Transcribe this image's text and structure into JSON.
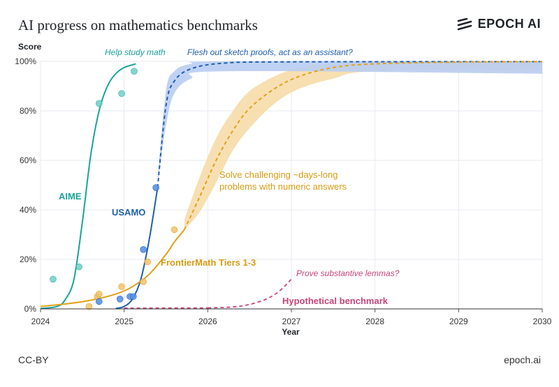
{
  "header": {
    "title": "AI progress on mathematics benchmarks",
    "brand": "EPOCH AI"
  },
  "footer": {
    "license": "CC-BY",
    "site": "epoch.ai"
  },
  "colors": {
    "aime": "#1aa39a",
    "usamo": "#1f5fb0",
    "usamo_light": "#4f8be0",
    "frontier": "#e0a11a",
    "hypothetical": "#c7457a",
    "grid": "#e6eaef",
    "usamo_band": "#b9cdf2",
    "frontier_band": "#f6dca8"
  },
  "chart_data": {
    "type": "line",
    "xlabel": "Year",
    "ylabel": "Score",
    "xlim": [
      2024,
      2030
    ],
    "ylim": [
      0,
      100
    ],
    "x_ticks": [
      "2024",
      "2025",
      "2026",
      "2027",
      "2028",
      "2029",
      "2030"
    ],
    "y_ticks": [
      "0%",
      "20%",
      "40%",
      "60%",
      "80%",
      "100%"
    ],
    "grid": true,
    "series": [
      {
        "name": "AIME",
        "fit": [
          [
            2024.0,
            0.2
          ],
          [
            2024.2,
            1
          ],
          [
            2024.3,
            4
          ],
          [
            2024.4,
            12
          ],
          [
            2024.5,
            35
          ],
          [
            2024.6,
            62
          ],
          [
            2024.7,
            80
          ],
          [
            2024.8,
            90
          ],
          [
            2024.9,
            95
          ],
          [
            2025.0,
            97.5
          ],
          [
            2025.14,
            99
          ]
        ],
        "points": [
          [
            2024.15,
            12
          ],
          [
            2024.46,
            17
          ],
          [
            2024.7,
            83
          ],
          [
            2024.97,
            87
          ],
          [
            2025.12,
            96
          ]
        ]
      },
      {
        "name": "USAMO",
        "fit": [
          [
            2024.9,
            0.2
          ],
          [
            2025.0,
            1
          ],
          [
            2025.1,
            4
          ],
          [
            2025.2,
            12
          ],
          [
            2025.3,
            28
          ],
          [
            2025.4,
            49
          ]
        ],
        "projection": [
          [
            2025.4,
            49
          ],
          [
            2025.5,
            82
          ],
          [
            2025.6,
            92
          ],
          [
            2025.8,
            97
          ],
          [
            2026.2,
            99.3
          ],
          [
            2027,
            99.8
          ],
          [
            2030,
            99.9
          ]
        ],
        "band_upper": [
          [
            2025.4,
            52
          ],
          [
            2025.5,
            88
          ],
          [
            2025.6,
            96
          ],
          [
            2025.8,
            99
          ],
          [
            2026.2,
            100
          ],
          [
            2030,
            100
          ]
        ],
        "band_lower": [
          [
            2030,
            95
          ],
          [
            2026.2,
            96
          ],
          [
            2025.8,
            93
          ],
          [
            2025.6,
            87
          ],
          [
            2025.5,
            74
          ],
          [
            2025.4,
            50
          ]
        ],
        "points": [
          [
            2024.7,
            3
          ],
          [
            2024.95,
            4
          ],
          [
            2025.07,
            5
          ],
          [
            2025.11,
            5
          ],
          [
            2025.23,
            24
          ],
          [
            2025.38,
            49
          ]
        ]
      },
      {
        "name": "FrontierMath Tiers 1-3",
        "fit": [
          [
            2024.0,
            1
          ],
          [
            2024.3,
            2
          ],
          [
            2024.6,
            3.5
          ],
          [
            2024.9,
            6
          ],
          [
            2025.1,
            9
          ],
          [
            2025.3,
            14
          ],
          [
            2025.5,
            22
          ],
          [
            2025.6,
            27
          ],
          [
            2025.72,
            32
          ]
        ],
        "projection": [
          [
            2025.72,
            32
          ],
          [
            2025.9,
            45
          ],
          [
            2026.1,
            60
          ],
          [
            2026.3,
            72
          ],
          [
            2026.5,
            81
          ],
          [
            2026.8,
            89
          ],
          [
            2027.1,
            94
          ],
          [
            2027.5,
            97.5
          ],
          [
            2028,
            99
          ],
          [
            2029,
            99.7
          ],
          [
            2030,
            99.9
          ]
        ],
        "band_upper": [
          [
            2025.72,
            36
          ],
          [
            2025.9,
            53
          ],
          [
            2026.1,
            69
          ],
          [
            2026.3,
            80
          ],
          [
            2026.5,
            88
          ],
          [
            2026.8,
            94
          ],
          [
            2027.1,
            97.5
          ],
          [
            2027.5,
            99
          ],
          [
            2028,
            100
          ],
          [
            2030,
            100
          ]
        ],
        "band_lower": [
          [
            2030,
            96
          ],
          [
            2028,
            96
          ],
          [
            2027.5,
            93
          ],
          [
            2027.1,
            89
          ],
          [
            2026.8,
            83
          ],
          [
            2026.5,
            73
          ],
          [
            2026.3,
            64
          ],
          [
            2026.1,
            51
          ],
          [
            2025.9,
            39
          ],
          [
            2025.72,
            32
          ]
        ],
        "points": [
          [
            2024.58,
            1
          ],
          [
            2024.68,
            5
          ],
          [
            2024.7,
            6
          ],
          [
            2024.97,
            9
          ],
          [
            2025.23,
            11
          ],
          [
            2025.28,
            19
          ],
          [
            2025.6,
            32
          ]
        ]
      },
      {
        "name": "Hypothetical benchmark",
        "baseline": [
          [
            2025.0,
            0.3
          ],
          [
            2026.0,
            0.4
          ]
        ],
        "projection": [
          [
            2026.0,
            0.4
          ],
          [
            2026.3,
            0.8
          ],
          [
            2026.5,
            1.8
          ],
          [
            2026.7,
            4
          ],
          [
            2026.85,
            7
          ],
          [
            2027.0,
            12
          ]
        ]
      }
    ],
    "annotations": {
      "aime_label": "AIME",
      "usamo_label": "USAMO",
      "frontier_label": "FrontierMath Tiers 1-3",
      "hypothetical_label": "Hypothetical benchmark",
      "help_study": "Help study math",
      "flesh_out": "Flesh out sketch proofs, act as an assistant?",
      "solve_line1": "Solve challenging ~days-long",
      "solve_line2": "problems with numeric answers",
      "prove": "Prove substantive lemmas?"
    }
  }
}
